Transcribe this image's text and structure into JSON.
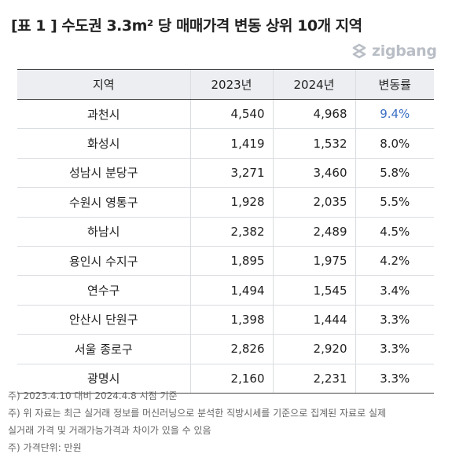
{
  "title": "[표 1 ] 수도권 3.3m² 당 매매가격 변동 상위 10개 지역",
  "logo": {
    "text": "zigbang",
    "color": "#b9bec6"
  },
  "accent_color": "#3b6fc4",
  "table": {
    "headers": [
      "지역",
      "2023년",
      "2024년",
      "변동률"
    ],
    "rows": [
      {
        "region": "과천시",
        "y2023": "4,540",
        "y2024": "4,968",
        "rate": "9.4%"
      },
      {
        "region": "화성시",
        "y2023": "1,419",
        "y2024": "1,532",
        "rate": "8.0%"
      },
      {
        "region": "성남시 분당구",
        "y2023": "3,271",
        "y2024": "3,460",
        "rate": "5.8%"
      },
      {
        "region": "수원시 영통구",
        "y2023": "1,928",
        "y2024": "2,035",
        "rate": "5.5%"
      },
      {
        "region": "하남시",
        "y2023": "2,382",
        "y2024": "2,489",
        "rate": "4.5%"
      },
      {
        "region": "용인시 수지구",
        "y2023": "1,895",
        "y2024": "1,975",
        "rate": "4.2%"
      },
      {
        "region": "연수구",
        "y2023": "1,494",
        "y2024": "1,545",
        "rate": "3.4%"
      },
      {
        "region": "안산시 단원구",
        "y2023": "1,398",
        "y2024": "1,444",
        "rate": "3.3%"
      },
      {
        "region": "서울 종로구",
        "y2023": "2,826",
        "y2024": "2,920",
        "rate": "3.3%"
      },
      {
        "region": "광명시",
        "y2023": "2,160",
        "y2024": "2,231",
        "rate": "3.3%"
      }
    ]
  },
  "notes": [
    "주) 2023.4.10 대비 2024.4.8 시점 기준",
    "주) 위 자료는 최근 실거래 정보를 머신러닝으로 분석한 직방시세를 기준으로 집계된 자료로 실제",
    "실거래 가격 및 거래가능가격과 차이가 있을 수 있음",
    "주) 가격단위: 만원"
  ]
}
